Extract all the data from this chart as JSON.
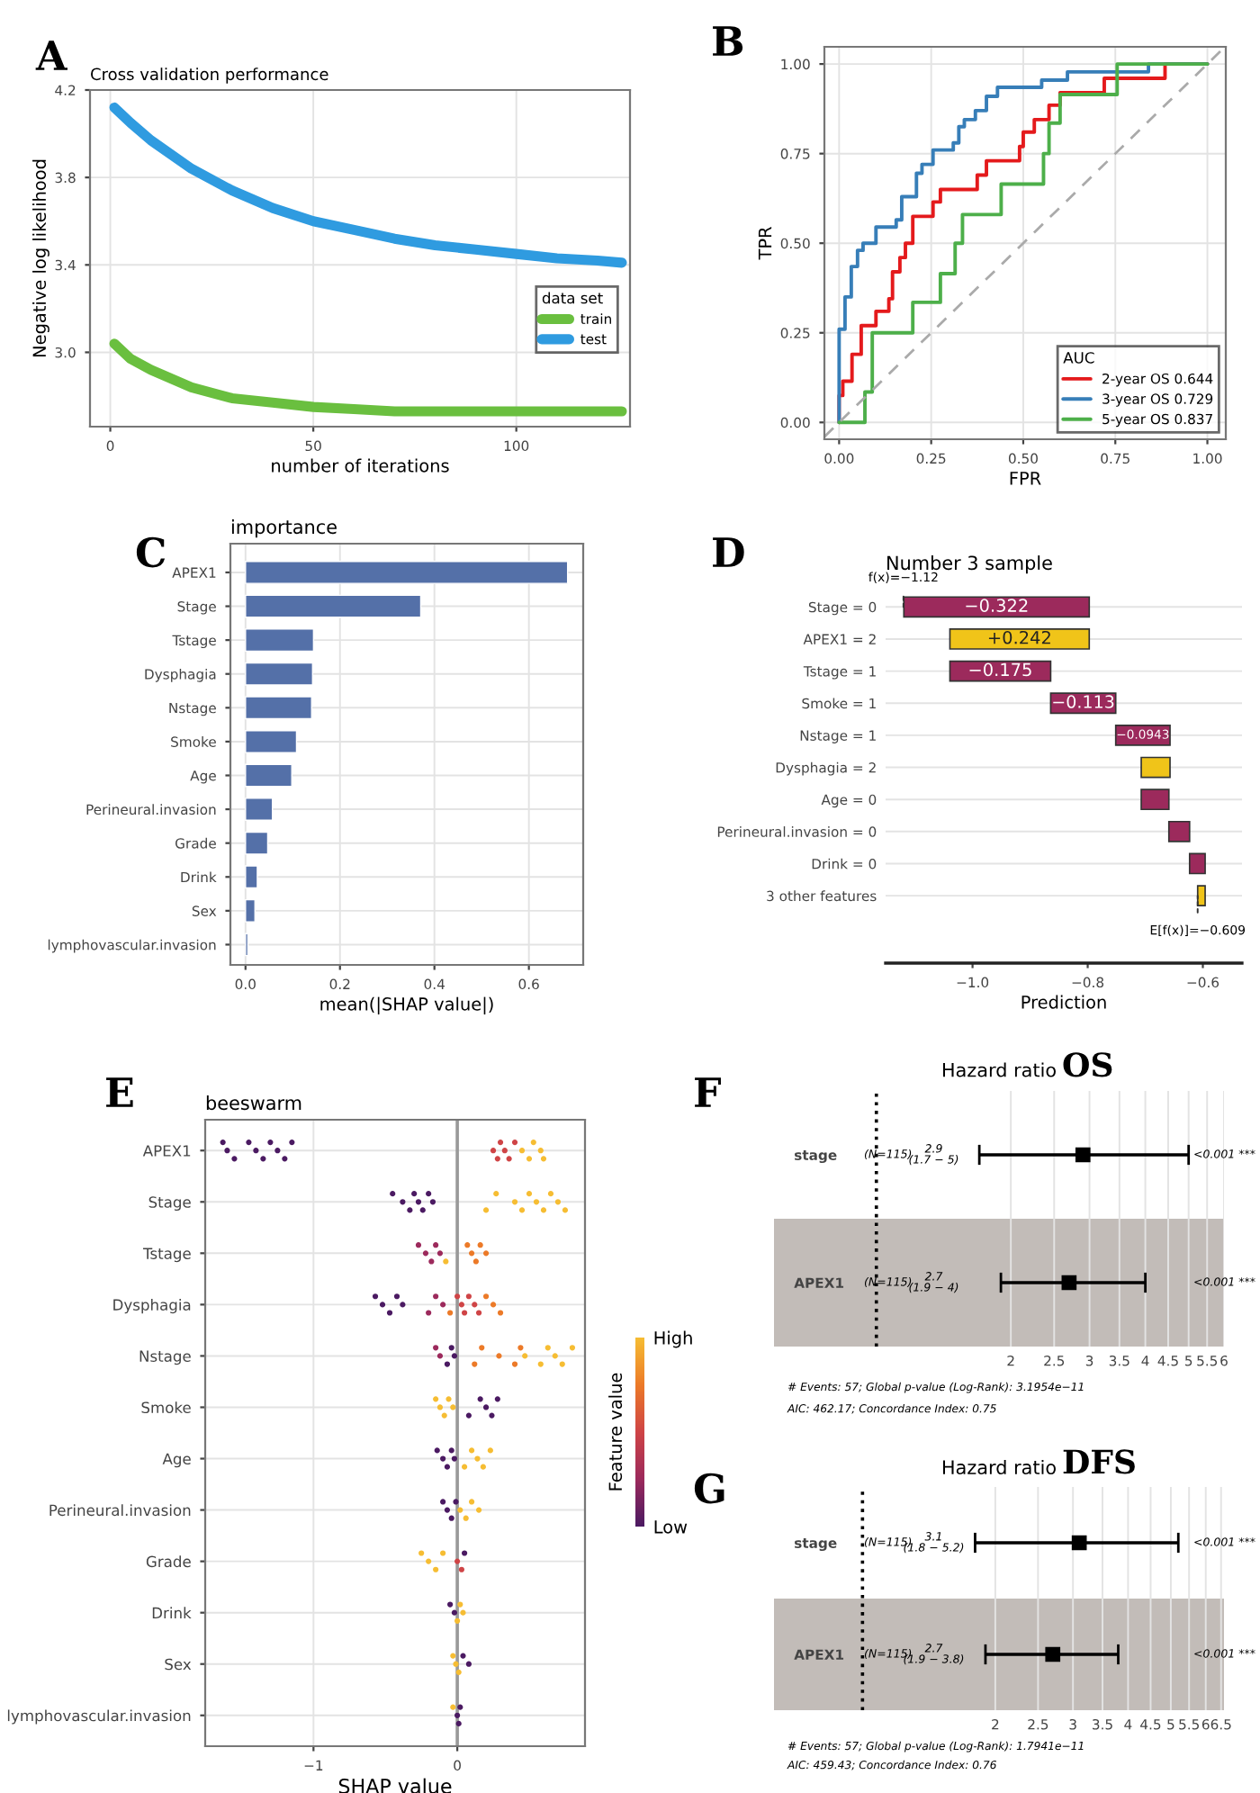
{
  "chart_data": [
    {
      "type": "line",
      "title": "Cross validation performance",
      "xlabel": "number of iterations",
      "ylabel": "Negative log likelihood",
      "legend_title": "data set",
      "legend": "bottom right",
      "grid": true,
      "xlim": [
        -5,
        128
      ],
      "ylim": [
        2.66,
        4.2
      ],
      "xticks": [
        0,
        50,
        100
      ],
      "yticks": [
        {
          "value": 3.0,
          "label": "3.0"
        },
        3.4,
        3.8,
        4.2
      ],
      "annotations": [
        "A"
      ],
      "series": [
        {
          "name": "train",
          "color": "#6abf3f",
          "x": [
            1,
            5,
            10,
            20,
            30,
            40,
            50,
            60,
            70,
            80,
            90,
            100,
            110,
            120,
            126
          ],
          "values": [
            3.04,
            2.97,
            2.92,
            2.84,
            2.79,
            2.77,
            2.75,
            2.74,
            2.73,
            2.73,
            2.73,
            2.73,
            2.73,
            2.73,
            2.73
          ]
        },
        {
          "name": "test",
          "color": "#2f9be0",
          "x": [
            1,
            5,
            10,
            20,
            30,
            40,
            50,
            60,
            70,
            80,
            90,
            100,
            110,
            120,
            126
          ],
          "values": [
            4.12,
            4.05,
            3.97,
            3.84,
            3.74,
            3.66,
            3.6,
            3.56,
            3.52,
            3.49,
            3.47,
            3.45,
            3.43,
            3.42,
            3.41
          ]
        }
      ]
    },
    {
      "type": "step",
      "xlabel": "FPR",
      "ylabel": "TPR",
      "legend_title": "AUC",
      "legend": "bottom right",
      "grid": true,
      "xlim": [
        -0.04,
        1.05
      ],
      "ylim": [
        -0.047,
        1.048
      ],
      "xticks": [
        {
          "value": 0,
          "label": "0.00"
        },
        {
          "value": 0.25,
          "label": "0.25"
        },
        {
          "value": 0.5,
          "label": "0.50"
        },
        {
          "value": 0.75,
          "label": "0.75"
        },
        {
          "value": 1,
          "label": "1.00"
        }
      ],
      "yticks": [
        {
          "value": 0,
          "label": "0.00"
        },
        {
          "value": 0.25,
          "label": "0.25"
        },
        {
          "value": 0.5,
          "label": "0.50"
        },
        {
          "value": 0.75,
          "label": "0.75"
        },
        {
          "value": 1,
          "label": "1.00"
        }
      ],
      "annotations": [
        "B"
      ],
      "series": [
        {
          "name": "2-year OS 0.644",
          "color": "#e41a1c",
          "x": [
            0,
            0,
            0.01,
            0.035,
            0.06,
            0.1,
            0.135,
            0.145,
            0.165,
            0.18,
            0.2,
            0.255,
            0.275,
            0.375,
            0.4,
            0.49,
            0.5,
            0.53,
            0.57,
            0.6,
            0.72,
            0.885,
            1.0
          ],
          "values": [
            0,
            0.075,
            0.115,
            0.19,
            0.27,
            0.31,
            0.345,
            0.42,
            0.46,
            0.5,
            0.575,
            0.615,
            0.65,
            0.69,
            0.73,
            0.77,
            0.81,
            0.845,
            0.885,
            0.92,
            0.96,
            1.0,
            1.0
          ]
        },
        {
          "name": "3-year OS 0.729",
          "color": "#377eb8",
          "x": [
            0,
            0,
            0.016,
            0.033,
            0.05,
            0.065,
            0.1,
            0.155,
            0.17,
            0.21,
            0.225,
            0.255,
            0.31,
            0.325,
            0.34,
            0.37,
            0.4,
            0.43,
            0.55,
            0.62,
            0.84,
            1.0
          ],
          "values": [
            0,
            0.26,
            0.35,
            0.435,
            0.48,
            0.5,
            0.545,
            0.565,
            0.63,
            0.695,
            0.72,
            0.76,
            0.78,
            0.825,
            0.845,
            0.87,
            0.91,
            0.935,
            0.955,
            0.978,
            1.0,
            1.0
          ]
        },
        {
          "name": "5-year OS 0.837",
          "color": "#4daf4a",
          "x": [
            0,
            0.07,
            0.09,
            0.2,
            0.275,
            0.315,
            0.335,
            0.44,
            0.555,
            0.57,
            0.6,
            0.755,
            1.0
          ],
          "values": [
            0,
            0.085,
            0.25,
            0.335,
            0.415,
            0.5,
            0.58,
            0.665,
            0.75,
            0.835,
            0.915,
            1.0,
            1.0
          ]
        },
        {
          "type": "line",
          "color": "#aaaaaa",
          "line_style": "dashed",
          "x": [
            -0.04,
            1.04
          ],
          "values": [
            -0.04,
            1.04
          ]
        }
      ]
    },
    {
      "type": "bar",
      "orientation": "horizontal",
      "title": "importance",
      "xlabel": "mean(|SHAP value|)",
      "grid": true,
      "color": "#5470a8",
      "xlim": [
        -0.032,
        0.715
      ],
      "xticks": [
        {
          "value": 0,
          "label": "0.0"
        },
        0.2,
        0.4,
        0.6
      ],
      "annotations": [
        "C"
      ],
      "categories": [
        "APEX1",
        "Stage",
        "Tstage",
        "Dysphagia",
        "Nstage",
        "Smoke",
        "Age",
        "Perineural.invasion",
        "Grade",
        "Drink",
        "Sex",
        "lymphovascular.invasion"
      ],
      "values": [
        0.682,
        0.371,
        0.144,
        0.142,
        0.14,
        0.108,
        0.098,
        0.057,
        0.047,
        0.025,
        0.02,
        0.005
      ]
    },
    {
      "type": "bar",
      "orientation": "horizontal",
      "title": "Number 3 sample",
      "xlabel": "Prediction",
      "grid": "y",
      "xlim": [
        -1.151,
        -0.532
      ],
      "xticks": [
        {
          "value": -1.0,
          "label": "−1.0"
        },
        {
          "value": -0.8,
          "label": "−0.8"
        },
        {
          "value": -0.6,
          "label": "−0.6"
        }
      ],
      "categories": [
        "Stage = 0",
        "APEX1 = 2",
        "Tstage = 1",
        "Smoke = 1",
        "Nstage = 1",
        "Dysphagia = 2",
        "Age = 0",
        "Perineural.invasion = 0",
        "Drink = 0",
        "3 other features"
      ],
      "values": [
        -0.322,
        0.242,
        -0.175,
        -0.113,
        -0.0943,
        0.05,
        -0.048,
        -0.036,
        -0.027,
        0.013
      ],
      "base": [
        -0.7973,
        -1.0393,
        -0.8643,
        -0.7513,
        -0.657,
        -0.707,
        -0.659,
        -0.623,
        -0.596,
        -0.609
      ],
      "colors": [
        "#9c2a5c",
        "#f0c419",
        "#9c2a5c",
        "#9c2a5c",
        "#9c2a5c",
        "#f0c419",
        "#9c2a5c",
        "#9c2a5c",
        "#9c2a5c",
        "#f0c419"
      ],
      "value_labels": [
        "−0.322",
        "+0.242",
        "−0.175",
        "−0.113",
        "−0.0943",
        null,
        null,
        null,
        null,
        null
      ],
      "annotations": [
        "D",
        {
          "text": "f(x)=−1.12",
          "x": -1.12,
          "y": "Stage = 0"
        },
        {
          "text": "E[f(x)]=−0.609",
          "x": -0.609,
          "y": "3 other features"
        }
      ]
    },
    {
      "type": "scatter",
      "orientation": "horizontal",
      "title": "beeswarm",
      "xlabel": "SHAP value",
      "grid": true,
      "xlim": [
        -1.753,
        0.888
      ],
      "xticks": [
        {
          "value": -1,
          "label": "−1"
        },
        0
      ],
      "clabel": "Feature value",
      "clim": [
        0,
        1
      ],
      "cticks": [
        {
          "value": 0,
          "label": "Low"
        },
        {
          "value": 1,
          "label": "High"
        }
      ],
      "ref_lines": [
        {
          "axis": "x",
          "value": 0,
          "color": "#999999"
        }
      ],
      "annotations": [
        "E"
      ],
      "categories": [
        "APEX1",
        "Stage",
        "Tstage",
        "Dysphagia",
        "Nstage",
        "Smoke",
        "Age",
        "Perineural.invasion",
        "Grade",
        "Drink",
        "Sex",
        "lymphovascular.invasion"
      ],
      "series": [
        {
          "x": [
            "APEX1",
            "APEX1",
            "APEX1",
            "APEX1",
            "APEX1",
            "APEX1",
            "APEX1",
            "APEX1",
            "APEX1",
            "APEX1",
            "APEX1",
            "APEX1",
            "APEX1",
            "APEX1",
            "APEX1",
            "APEX1",
            "APEX1",
            "APEX1",
            "APEX1",
            "APEX1",
            "APEX1"
          ],
          "values": [
            -1.63,
            -1.6,
            -1.55,
            -1.45,
            -1.4,
            -1.35,
            -1.3,
            -1.25,
            -1.2,
            -1.15,
            0.25,
            0.28,
            0.3,
            0.33,
            0.36,
            0.4,
            0.45,
            0.5,
            0.53,
            0.58,
            0.6
          ],
          "colors": [
            "#4b1a62",
            "#4b1a62",
            "#4b1a62",
            "#4b1a62",
            "#4b1a62",
            "#4b1a62",
            "#4b1a62",
            "#4b1a62",
            "#4b1a62",
            "#4b1a62",
            "#cf4446",
            "#cf4446",
            "#cf4446",
            "#cf4446",
            "#cf4446",
            "#cf4446",
            "#f6bd33",
            "#f6bd33",
            "#f6bd33",
            "#f6bd33",
            "#f6bd33"
          ]
        },
        {
          "x": [
            "Stage",
            "Stage",
            "Stage",
            "Stage",
            "Stage",
            "Stage",
            "Stage",
            "Stage",
            "Stage",
            "Stage",
            "Stage",
            "Stage",
            "Stage",
            "Stage",
            "Stage",
            "Stage",
            "Stage",
            "Stage"
          ],
          "values": [
            -0.45,
            -0.38,
            -0.33,
            -0.3,
            -0.27,
            -0.24,
            -0.2,
            -0.17,
            0.2,
            0.27,
            0.4,
            0.45,
            0.5,
            0.55,
            0.6,
            0.65,
            0.7,
            0.75
          ],
          "colors": [
            "#4b1a62",
            "#4b1a62",
            "#4b1a62",
            "#4b1a62",
            "#4b1a62",
            "#4b1a62",
            "#4b1a62",
            "#4b1a62",
            "#f6bd33",
            "#f6bd33",
            "#f6bd33",
            "#f6bd33",
            "#f6bd33",
            "#f6bd33",
            "#f6bd33",
            "#f6bd33",
            "#f6bd33",
            "#f6bd33"
          ]
        },
        {
          "x": [
            "Tstage",
            "Tstage",
            "Tstage",
            "Tstage",
            "Tstage",
            "Tstage",
            "Tstage",
            "Tstage",
            "Tstage",
            "Tstage",
            "Tstage"
          ],
          "values": [
            -0.27,
            -0.22,
            -0.18,
            -0.15,
            -0.12,
            -0.08,
            0.07,
            0.1,
            0.13,
            0.16,
            0.2
          ],
          "colors": [
            "#9c2a5c",
            "#9c2a5c",
            "#9c2a5c",
            "#9c2a5c",
            "#9c2a5c",
            "#f6bd33",
            "#ec7a28",
            "#ec7a28",
            "#ec7a28",
            "#ec7a28",
            "#ec7a28"
          ]
        },
        {
          "x": [
            "Dysphagia",
            "Dysphagia",
            "Dysphagia",
            "Dysphagia",
            "Dysphagia",
            "Dysphagia",
            "Dysphagia",
            "Dysphagia",
            "Dysphagia",
            "Dysphagia",
            "Dysphagia",
            "Dysphagia",
            "Dysphagia",
            "Dysphagia",
            "Dysphagia",
            "Dysphagia",
            "Dysphagia",
            "Dysphagia"
          ],
          "values": [
            -0.57,
            -0.52,
            -0.47,
            -0.42,
            -0.38,
            -0.2,
            -0.15,
            -0.1,
            -0.05,
            0.0,
            0.03,
            0.05,
            0.08,
            0.12,
            0.15,
            0.2,
            0.25,
            0.3
          ],
          "colors": [
            "#4b1a62",
            "#4b1a62",
            "#4b1a62",
            "#4b1a62",
            "#4b1a62",
            "#9c2a5c",
            "#9c2a5c",
            "#9c2a5c",
            "#ec7a28",
            "#cf4446",
            "#cf4446",
            "#cf4446",
            "#cf4446",
            "#cf4446",
            "#cf4446",
            "#ec7a28",
            "#ec7a28",
            "#ec7a28"
          ]
        },
        {
          "x": [
            "Nstage",
            "Nstage",
            "Nstage",
            "Nstage",
            "Nstage",
            "Nstage",
            "Nstage",
            "Nstage",
            "Nstage",
            "Nstage",
            "Nstage",
            "Nstage",
            "Nstage",
            "Nstage",
            "Nstage",
            "Nstage"
          ],
          "values": [
            -0.15,
            -0.12,
            -0.07,
            -0.04,
            -0.02,
            0.12,
            0.17,
            0.29,
            0.4,
            0.44,
            0.47,
            0.58,
            0.63,
            0.68,
            0.73,
            0.8
          ],
          "colors": [
            "#9c2a5c",
            "#9c2a5c",
            "#4b1a62",
            "#4b1a62",
            "#4b1a62",
            "#ec7a28",
            "#ec7a28",
            "#ec7a28",
            "#ec7a28",
            "#ec7a28",
            "#f6bd33",
            "#f6bd33",
            "#f6bd33",
            "#f6bd33",
            "#f6bd33",
            "#f6bd33"
          ]
        },
        {
          "x": [
            "Smoke",
            "Smoke",
            "Smoke",
            "Smoke",
            "Smoke",
            "Smoke",
            "Smoke",
            "Smoke",
            "Smoke",
            "Smoke"
          ],
          "values": [
            -0.15,
            -0.12,
            -0.09,
            -0.06,
            -0.03,
            0.08,
            0.16,
            0.2,
            0.24,
            0.28
          ],
          "colors": [
            "#f6bd33",
            "#f6bd33",
            "#f6bd33",
            "#f6bd33",
            "#f6bd33",
            "#4b1a62",
            "#4b1a62",
            "#4b1a62",
            "#4b1a62",
            "#4b1a62"
          ]
        },
        {
          "x": [
            "Age",
            "Age",
            "Age",
            "Age",
            "Age",
            "Age",
            "Age",
            "Age",
            "Age",
            "Age"
          ],
          "values": [
            -0.14,
            -0.1,
            -0.07,
            -0.04,
            -0.02,
            0.05,
            0.1,
            0.14,
            0.18,
            0.23
          ],
          "colors": [
            "#4b1a62",
            "#4b1a62",
            "#4b1a62",
            "#4b1a62",
            "#4b1a62",
            "#f6bd33",
            "#f6bd33",
            "#f6bd33",
            "#f6bd33",
            "#f6bd33"
          ]
        },
        {
          "x": [
            "Perineural.invasion",
            "Perineural.invasion",
            "Perineural.invasion",
            "Perineural.invasion",
            "Perineural.invasion",
            "Perineural.invasion",
            "Perineural.invasion",
            "Perineural.invasion"
          ],
          "values": [
            -0.1,
            -0.07,
            -0.04,
            -0.01,
            0.02,
            0.06,
            0.1,
            0.15
          ],
          "colors": [
            "#4b1a62",
            "#4b1a62",
            "#4b1a62",
            "#4b1a62",
            "#f6bd33",
            "#f6bd33",
            "#f6bd33",
            "#f6bd33"
          ]
        },
        {
          "x": [
            "Grade",
            "Grade",
            "Grade",
            "Grade",
            "Grade",
            "Grade",
            "Grade"
          ],
          "values": [
            -0.25,
            -0.2,
            -0.15,
            -0.1,
            0.0,
            0.03,
            0.05
          ],
          "colors": [
            "#f6bd33",
            "#f6bd33",
            "#f6bd33",
            "#f6bd33",
            "#cf4446",
            "#cf4446",
            "#4b1a62"
          ]
        },
        {
          "x": [
            "Drink",
            "Drink",
            "Drink",
            "Drink",
            "Drink"
          ],
          "values": [
            -0.05,
            -0.02,
            0.0,
            0.02,
            0.04
          ],
          "colors": [
            "#4b1a62",
            "#4b1a62",
            "#f6bd33",
            "#f6bd33",
            "#f6bd33"
          ]
        },
        {
          "x": [
            "Sex",
            "Sex",
            "Sex",
            "Sex",
            "Sex"
          ],
          "values": [
            -0.03,
            -0.01,
            0.01,
            0.04,
            0.08
          ],
          "colors": [
            "#f6bd33",
            "#f6bd33",
            "#f6bd33",
            "#4b1a62",
            "#4b1a62"
          ]
        },
        {
          "x": [
            "lymphovascular.invasion",
            "lymphovascular.invasion",
            "lymphovascular.invasion",
            "lymphovascular.invasion"
          ],
          "values": [
            -0.03,
            0.0,
            0.01,
            0.02
          ],
          "colors": [
            "#f6bd33",
            "#4b1a62",
            "#4b1a62",
            "#4b1a62"
          ]
        }
      ]
    },
    {
      "type": "scatter",
      "orientation": "horizontal",
      "title": "Hazard ratio",
      "subtitle": "OS",
      "categories": [
        "stage",
        "APEX1"
      ],
      "values": [
        2.9,
        2.7
      ],
      "errors": [
        [
          1.7,
          5
        ],
        [
          1.9,
          4
        ]
      ],
      "color": "#000000",
      "marker": "square",
      "log": "x",
      "xlim": [
        0.59,
        6.0
      ],
      "xticks": [
        2,
        2.5,
        3,
        3.5,
        4,
        4.5,
        5,
        5.5,
        6
      ],
      "grid": "x",
      "ref_lines": [
        {
          "axis": "x",
          "value": 1,
          "line_style": "dotted"
        }
      ],
      "bands": [
        {
          "axis": "y",
          "from": "APEX1",
          "to": "APEX1",
          "color": "#c2bcb8"
        }
      ],
      "annotations": [
        "F",
        "(N=115)",
        "2.9\n(1.7 − 5)",
        "<0.001 ***",
        "(N=115)",
        "2.7\n(1.9 − 4)",
        "<0.001 ***",
        "# Events: 57; Global p-value (Log-Rank): 3.1954e−11",
        "AIC: 462.17; Concordance Index: 0.75"
      ]
    },
    {
      "type": "scatter",
      "orientation": "horizontal",
      "title": "Hazard ratio",
      "subtitle": "DFS",
      "categories": [
        "stage",
        "APEX1"
      ],
      "values": [
        3.1,
        2.7
      ],
      "errors": [
        [
          1.8,
          5.2
        ],
        [
          1.9,
          3.8
        ]
      ],
      "color": "#000000",
      "marker": "square",
      "log": "x",
      "xlim": [
        0.63,
        6.6
      ],
      "xticks": [
        2,
        2.5,
        3,
        3.5,
        4,
        4.5,
        5,
        5.5,
        6,
        6.5
      ],
      "grid": "x",
      "ref_lines": [
        {
          "axis": "x",
          "value": 1,
          "line_style": "dotted"
        }
      ],
      "bands": [
        {
          "axis": "y",
          "from": "APEX1",
          "to": "APEX1",
          "color": "#c2bcb8"
        }
      ],
      "annotations": [
        "G",
        "(N=115)",
        "3.1\n(1.8 − 5.2)",
        "<0.001 ***",
        "(N=115)",
        "2.7\n(1.9 − 3.8)",
        "<0.001 ***",
        "# Events: 57; Global p-value (Log-Rank): 1.7941e−11",
        "AIC: 459.43; Concordance Index: 0.76"
      ]
    }
  ]
}
